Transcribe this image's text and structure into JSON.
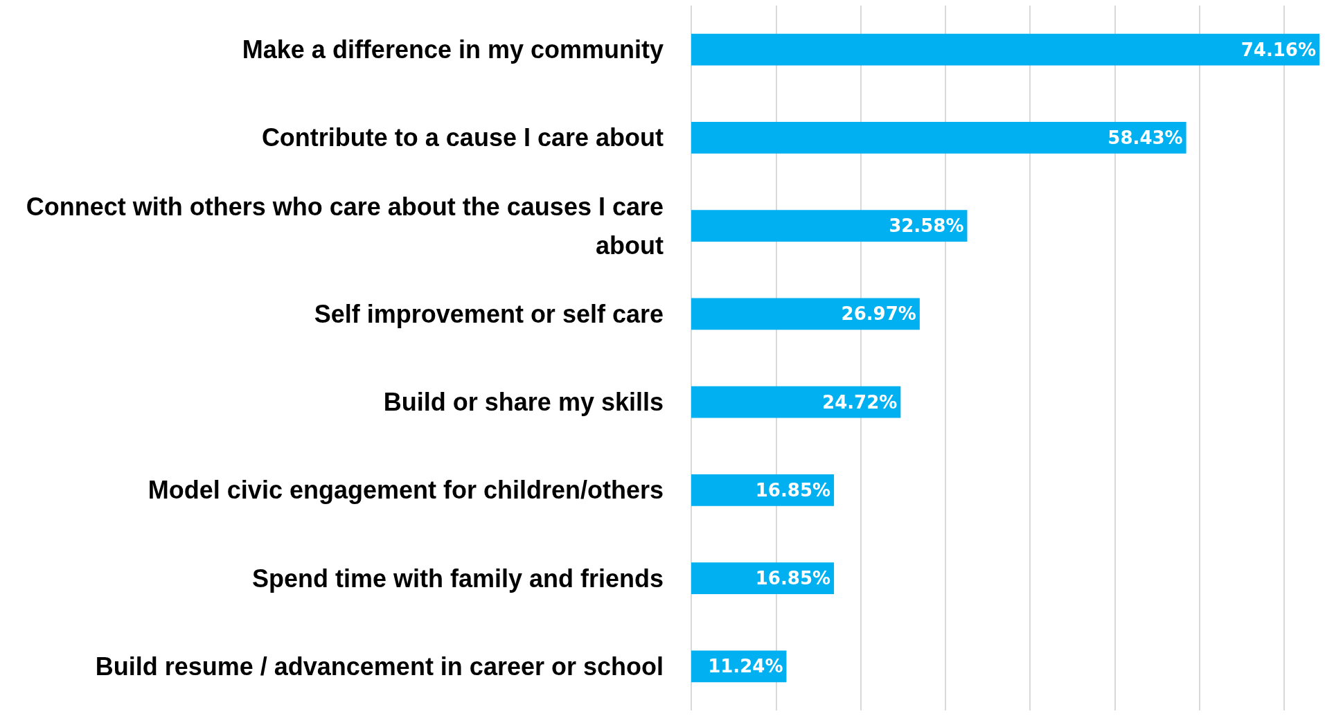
{
  "chart_data": {
    "type": "bar",
    "orientation": "horizontal",
    "categories": [
      "Make a difference in my community",
      "Contribute to a cause I care about",
      "Connect with others who care about the causes I care about",
      "Self improvement or self care",
      "Build or share my skills",
      "Model civic engagement for children/others",
      "Spend time with family and friends",
      "Build resume / advancement in career or school"
    ],
    "values": [
      74.16,
      58.43,
      32.58,
      26.97,
      24.72,
      16.85,
      16.85,
      11.24
    ],
    "value_labels": [
      "74.16%",
      "58.43%",
      "32.58%",
      "26.97%",
      "24.72%",
      "16.85%",
      "16.85%",
      "11.24%"
    ],
    "color": "#00b0f0",
    "xticks": [
      {
        "value": 0,
        "label": null
      },
      {
        "value": 10,
        "label": null
      },
      {
        "value": 20,
        "label": null
      },
      {
        "value": 30,
        "label": null
      },
      {
        "value": 40,
        "label": null
      },
      {
        "value": 50,
        "label": null
      },
      {
        "value": 60,
        "label": null
      },
      {
        "value": 70,
        "label": null
      }
    ],
    "grid": "x",
    "tick_labels": "y"
  }
}
